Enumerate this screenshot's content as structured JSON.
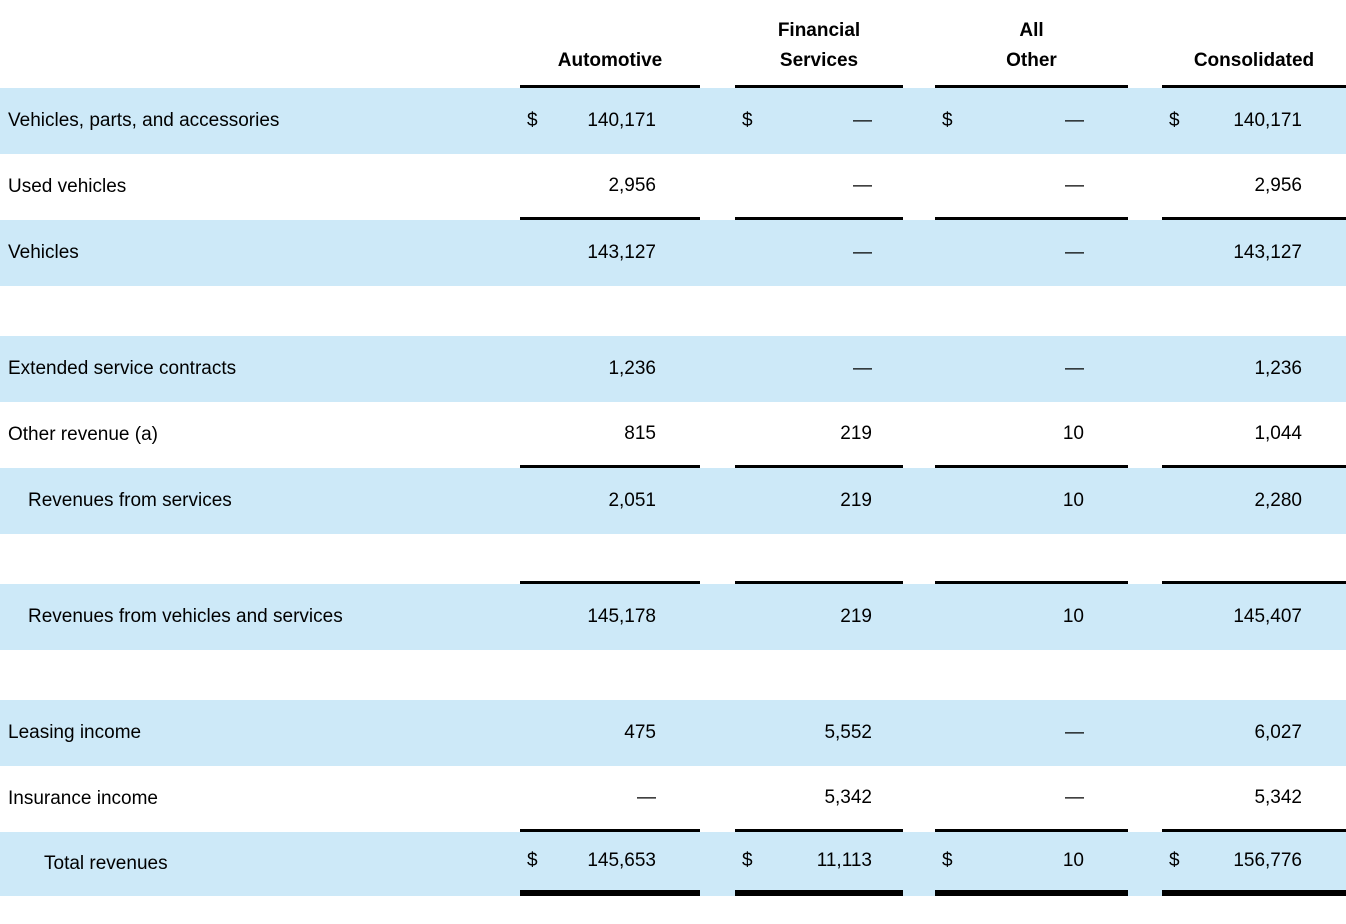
{
  "colors": {
    "highlight_row": "#CDE9F8",
    "rule": "#000000",
    "text": "#000000"
  },
  "table": {
    "header": {
      "automotive": "Automotive",
      "financial_services_line1": "Financial",
      "financial_services_line2": "Services",
      "all_other_line1": "All",
      "all_other_line2": "Other",
      "consolidated": "Consolidated"
    },
    "rows": [
      {
        "kind": "data",
        "bg": "blue",
        "indent": 0,
        "underline": false,
        "total": false,
        "label": "Vehicles, parts, and accessories",
        "cells": [
          {
            "cur": "$",
            "val": "140,171"
          },
          {
            "cur": "$",
            "val": "—"
          },
          {
            "cur": "$",
            "val": "—"
          },
          {
            "cur": "$",
            "val": "140,171"
          }
        ]
      },
      {
        "kind": "data",
        "bg": "white",
        "indent": 0,
        "underline": true,
        "total": false,
        "label": "Used vehicles",
        "cells": [
          {
            "cur": "",
            "val": "2,956"
          },
          {
            "cur": "",
            "val": "—"
          },
          {
            "cur": "",
            "val": "—"
          },
          {
            "cur": "",
            "val": "2,956"
          }
        ]
      },
      {
        "kind": "data",
        "bg": "blue",
        "indent": 0,
        "underline": false,
        "total": false,
        "label": "Vehicles",
        "cells": [
          {
            "cur": "",
            "val": "143,127"
          },
          {
            "cur": "",
            "val": "—"
          },
          {
            "cur": "",
            "val": "—"
          },
          {
            "cur": "",
            "val": "143,127"
          }
        ]
      },
      {
        "kind": "spacer",
        "bg": "white",
        "underline": false,
        "total": false,
        "label": "",
        "cells": []
      },
      {
        "kind": "data",
        "bg": "blue",
        "indent": 0,
        "underline": false,
        "total": false,
        "label": "Extended service contracts",
        "cells": [
          {
            "cur": "",
            "val": "1,236"
          },
          {
            "cur": "",
            "val": "—"
          },
          {
            "cur": "",
            "val": "—"
          },
          {
            "cur": "",
            "val": "1,236"
          }
        ]
      },
      {
        "kind": "data",
        "bg": "white",
        "indent": 0,
        "underline": true,
        "total": false,
        "label": "Other revenue (a)",
        "cells": [
          {
            "cur": "",
            "val": "815"
          },
          {
            "cur": "",
            "val": "219"
          },
          {
            "cur": "",
            "val": "10"
          },
          {
            "cur": "",
            "val": "1,044"
          }
        ]
      },
      {
        "kind": "data",
        "bg": "blue",
        "indent": 1,
        "underline": false,
        "total": false,
        "label": "Revenues from services",
        "cells": [
          {
            "cur": "",
            "val": "2,051"
          },
          {
            "cur": "",
            "val": "219"
          },
          {
            "cur": "",
            "val": "10"
          },
          {
            "cur": "",
            "val": "2,280"
          }
        ]
      },
      {
        "kind": "spacer",
        "bg": "white",
        "underline": true,
        "total": false,
        "label": "",
        "cells": []
      },
      {
        "kind": "data",
        "bg": "blue",
        "indent": 1,
        "underline": false,
        "total": false,
        "label": "Revenues from vehicles and services",
        "cells": [
          {
            "cur": "",
            "val": "145,178"
          },
          {
            "cur": "",
            "val": "219"
          },
          {
            "cur": "",
            "val": "10"
          },
          {
            "cur": "",
            "val": "145,407"
          }
        ]
      },
      {
        "kind": "spacer",
        "bg": "white",
        "underline": false,
        "total": false,
        "label": "",
        "cells": []
      },
      {
        "kind": "data",
        "bg": "blue",
        "indent": 0,
        "underline": false,
        "total": false,
        "label": "Leasing income",
        "cells": [
          {
            "cur": "",
            "val": "475"
          },
          {
            "cur": "",
            "val": "5,552"
          },
          {
            "cur": "",
            "val": "—"
          },
          {
            "cur": "",
            "val": "6,027"
          }
        ]
      },
      {
        "kind": "data",
        "bg": "white",
        "indent": 0,
        "underline": true,
        "total": false,
        "label": "Insurance income",
        "cells": [
          {
            "cur": "",
            "val": "—"
          },
          {
            "cur": "",
            "val": "5,342"
          },
          {
            "cur": "",
            "val": "—"
          },
          {
            "cur": "",
            "val": "5,342"
          }
        ]
      },
      {
        "kind": "data",
        "bg": "blue",
        "indent": 2,
        "underline": false,
        "total": true,
        "label": "Total revenues",
        "cells": [
          {
            "cur": "$",
            "val": "145,653"
          },
          {
            "cur": "$",
            "val": "11,113"
          },
          {
            "cur": "$",
            "val": "10"
          },
          {
            "cur": "$",
            "val": "156,776"
          }
        ]
      }
    ]
  }
}
